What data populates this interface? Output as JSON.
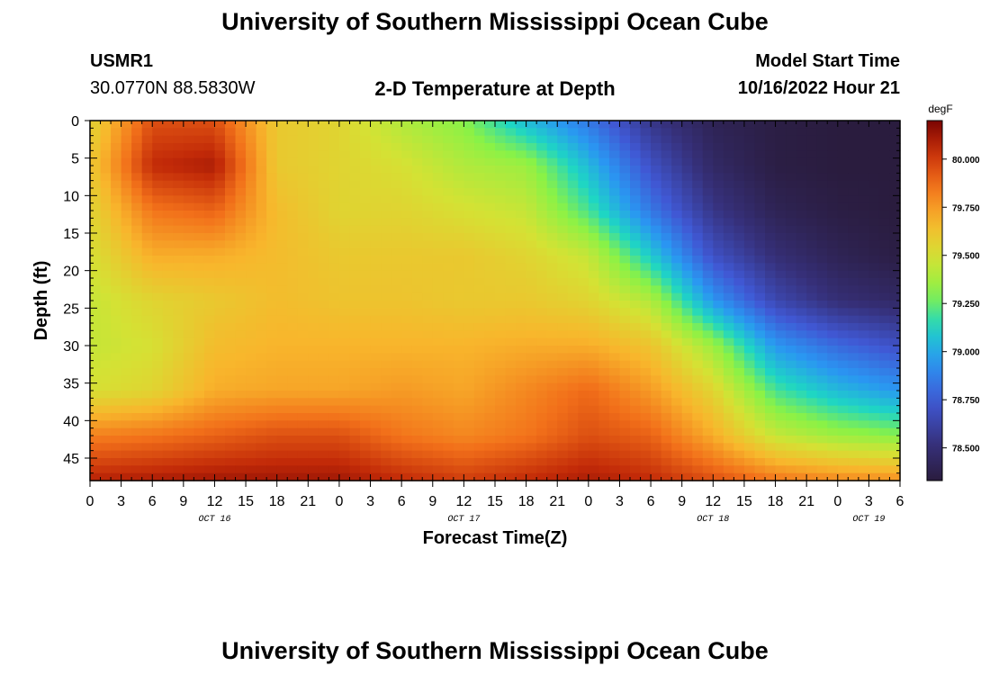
{
  "header": {
    "title": "University of Southern Mississippi Ocean Cube",
    "station_id": "USMR1",
    "coordinates": "30.0770N  88.5830W",
    "plot_title": "2-D Temperature at Depth",
    "model_start_label": "Model Start Time",
    "model_start_value": "10/16/2022 Hour 21"
  },
  "footer": {
    "title": "University of Southern Mississippi Ocean Cube"
  },
  "chart_data": {
    "type": "heatmap",
    "title": "2-D Temperature at Depth",
    "xlabel": "Forecast Time(Z)",
    "ylabel": "Depth (ft)",
    "colorbar_unit": "degF",
    "colorbar_ticks": [
      "80.000",
      "79.750",
      "79.500",
      "79.250",
      "79.000",
      "78.750",
      "78.500"
    ],
    "colorbar_range": [
      78.33,
      80.2
    ],
    "x_tick_labels": [
      "0",
      "3",
      "6",
      "9",
      "12",
      "15",
      "18",
      "21",
      "0",
      "3",
      "6",
      "9",
      "12",
      "15",
      "18",
      "21",
      "0",
      "3",
      "6",
      "9",
      "12",
      "15",
      "18",
      "21",
      "0",
      "3",
      "6"
    ],
    "day_labels": [
      {
        "label": "OCT 16",
        "at_tick": 4
      },
      {
        "label": "OCT 17",
        "at_tick": 12
      },
      {
        "label": "OCT 18",
        "at_tick": 20
      },
      {
        "label": "OCT 19",
        "at_tick": 25
      }
    ],
    "y_tick_labels": [
      "0",
      "5",
      "10",
      "15",
      "20",
      "25",
      "30",
      "35",
      "40",
      "45"
    ],
    "x_range_hours": [
      0,
      78
    ],
    "depth_range_ft": [
      0,
      48
    ],
    "hours": [
      0,
      6,
      12,
      18,
      24,
      30,
      36,
      42,
      48,
      54,
      60,
      66,
      72,
      78
    ],
    "depths_ft": [
      0,
      6,
      12,
      18,
      24,
      30,
      36,
      42,
      48
    ],
    "temperature_degF": [
      [
        79.55,
        79.95,
        79.95,
        79.6,
        79.55,
        79.4,
        79.3,
        79.05,
        78.85,
        78.55,
        78.4,
        78.35,
        78.33,
        78.33
      ],
      [
        79.6,
        80.05,
        80.1,
        79.6,
        79.55,
        79.5,
        79.4,
        79.35,
        79.05,
        78.7,
        78.45,
        78.35,
        78.33,
        78.33
      ],
      [
        79.55,
        79.85,
        79.9,
        79.65,
        79.55,
        79.55,
        79.5,
        79.45,
        79.2,
        78.85,
        78.55,
        78.4,
        78.35,
        78.33
      ],
      [
        79.5,
        79.7,
        79.7,
        79.65,
        79.6,
        79.6,
        79.6,
        79.55,
        79.45,
        79.1,
        78.7,
        78.5,
        78.4,
        78.35
      ],
      [
        79.45,
        79.55,
        79.6,
        79.65,
        79.62,
        79.62,
        79.6,
        79.6,
        79.55,
        79.4,
        78.95,
        78.65,
        78.5,
        78.45
      ],
      [
        79.45,
        79.5,
        79.65,
        79.68,
        79.68,
        79.68,
        79.68,
        79.7,
        79.7,
        79.62,
        79.35,
        78.95,
        78.8,
        78.7
      ],
      [
        79.5,
        79.55,
        79.7,
        79.72,
        79.72,
        79.75,
        79.72,
        79.8,
        79.88,
        79.75,
        79.55,
        79.2,
        79.05,
        78.95
      ],
      [
        79.82,
        79.85,
        79.9,
        79.95,
        79.95,
        79.85,
        79.8,
        79.85,
        79.95,
        79.9,
        79.7,
        79.45,
        79.35,
        79.3
      ],
      [
        80.08,
        80.1,
        80.12,
        80.12,
        80.12,
        80.05,
        80.0,
        80.05,
        80.1,
        80.05,
        79.95,
        79.85,
        79.8,
        79.78
      ]
    ]
  }
}
